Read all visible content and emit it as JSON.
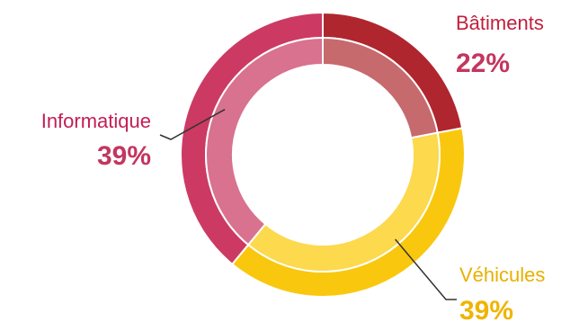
{
  "chart_data": {
    "type": "pie",
    "title": "",
    "slices": [
      {
        "label": "Bâtiments",
        "value": 22,
        "value_label": "22%",
        "color_outer": "#b0262e",
        "color_inner": "#c66a6d",
        "label_color": "#c21e3c",
        "value_color": "#c3365f"
      },
      {
        "label": "Véhicules",
        "value": 39,
        "value_label": "39%",
        "color_outer": "#f9c80e",
        "color_inner": "#fcd94d",
        "label_color": "#e8b000",
        "value_color": "#f0b400"
      },
      {
        "label": "Informatique",
        "value": 39,
        "value_label": "39%",
        "color_outer": "#cc3a63",
        "color_inner": "#d8728e",
        "label_color": "#c21e55",
        "value_color": "#c3365f"
      }
    ],
    "start_angle_deg": 0,
    "legend": "none"
  }
}
